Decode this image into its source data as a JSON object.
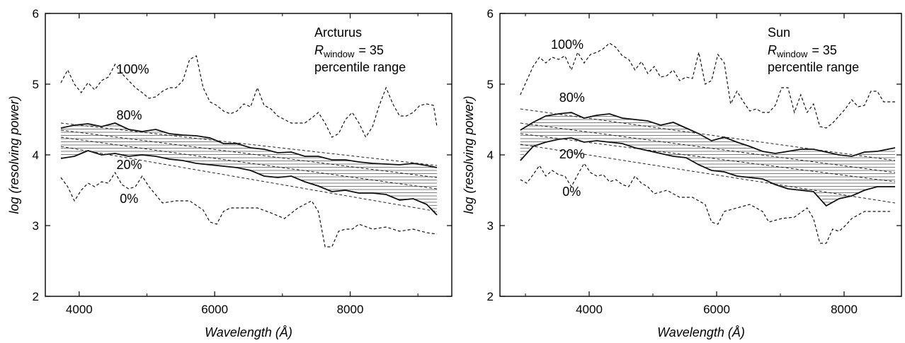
{
  "chart_data": [
    {
      "type": "line",
      "panel": "left",
      "star_name": "Arcturus",
      "annotation": {
        "r_symbol": "R",
        "r_subscript": "window",
        "r_value": "= 35",
        "line3": "percentile range"
      },
      "xlabel": "Wavelength (Å)",
      "ylabel": "log (resolving power)",
      "xlim": [
        3500,
        9500
      ],
      "ylim": [
        2,
        6
      ],
      "x_ticks": [
        4000,
        6000,
        8000
      ],
      "y_ticks": [
        2,
        3,
        4,
        5,
        6
      ],
      "grid": false,
      "series": [
        {
          "name": "100%",
          "style": "dashed",
          "x": [
            3730,
            3830,
            3930,
            4030,
            4130,
            4230,
            4330,
            4430,
            4530,
            4630,
            4730,
            4830,
            4930,
            5030,
            5130,
            5230,
            5330,
            5430,
            5530,
            5630,
            5730,
            5830,
            5930,
            6030,
            6130,
            6230,
            6330,
            6430,
            6530,
            6630,
            6730,
            6830,
            6930,
            7030,
            7130,
            7230,
            7330,
            7430,
            7530,
            7630,
            7730,
            7830,
            7930,
            8030,
            8130,
            8230,
            8330,
            8430,
            8530,
            8630,
            8730,
            8830,
            8930,
            9030,
            9130,
            9230,
            9280
          ],
          "y": [
            5.02,
            5.2,
            5.0,
            4.88,
            5.02,
            4.92,
            5.05,
            5.1,
            5.28,
            5.15,
            5.05,
            4.95,
            4.88,
            4.8,
            4.82,
            4.9,
            4.95,
            4.95,
            5.05,
            5.35,
            5.4,
            4.95,
            4.75,
            4.7,
            4.62,
            4.58,
            4.62,
            4.72,
            4.68,
            4.95,
            4.7,
            4.65,
            4.55,
            4.5,
            4.45,
            4.45,
            4.45,
            4.52,
            4.6,
            4.45,
            4.25,
            4.3,
            4.5,
            4.6,
            4.45,
            4.25,
            4.4,
            4.7,
            4.95,
            4.72,
            4.55,
            4.55,
            4.6,
            4.7,
            4.72,
            4.7,
            4.4
          ]
        },
        {
          "name": "80%",
          "style": "solid",
          "x": [
            3730,
            3930,
            4130,
            4330,
            4530,
            4730,
            4930,
            5130,
            5330,
            5530,
            5730,
            5930,
            6130,
            6330,
            6530,
            6730,
            6930,
            7130,
            7330,
            7530,
            7730,
            7930,
            8130,
            8330,
            8530,
            8730,
            8930,
            9130,
            9280
          ],
          "y": [
            4.38,
            4.42,
            4.44,
            4.4,
            4.45,
            4.36,
            4.33,
            4.36,
            4.3,
            4.28,
            4.27,
            4.24,
            4.16,
            4.16,
            4.1,
            4.08,
            4.03,
            4.04,
            3.98,
            3.98,
            3.93,
            3.93,
            3.9,
            3.88,
            3.87,
            3.86,
            3.88,
            3.85,
            3.82
          ]
        },
        {
          "name": "20%",
          "style": "solid",
          "x": [
            3730,
            3930,
            4130,
            4330,
            4530,
            4730,
            4930,
            5130,
            5330,
            5530,
            5730,
            5930,
            6130,
            6330,
            6530,
            6730,
            6930,
            7130,
            7330,
            7530,
            7730,
            7930,
            8130,
            8330,
            8530,
            8730,
            8930,
            9130,
            9280
          ],
          "y": [
            3.95,
            3.98,
            4.06,
            4.0,
            4.02,
            3.98,
            4.0,
            3.98,
            3.94,
            3.92,
            3.88,
            3.86,
            3.84,
            3.82,
            3.78,
            3.7,
            3.68,
            3.7,
            3.62,
            3.56,
            3.48,
            3.5,
            3.46,
            3.46,
            3.44,
            3.36,
            3.38,
            3.3,
            3.15
          ]
        },
        {
          "name": "0%",
          "style": "dashed",
          "x": [
            3730,
            3830,
            3930,
            4030,
            4130,
            4230,
            4330,
            4430,
            4530,
            4630,
            4730,
            4830,
            4930,
            5030,
            5230,
            5430,
            5630,
            5830,
            5930,
            6030,
            6130,
            6230,
            6430,
            6630,
            6830,
            7030,
            7230,
            7430,
            7530,
            7630,
            7730,
            7830,
            7930,
            8030,
            8130,
            8330,
            8530,
            8730,
            8930,
            9130,
            9280
          ],
          "y": [
            3.68,
            3.55,
            3.35,
            3.5,
            3.6,
            3.55,
            3.62,
            3.6,
            3.75,
            3.58,
            3.52,
            3.55,
            3.7,
            3.55,
            3.32,
            3.35,
            3.35,
            3.22,
            3.05,
            3.02,
            3.2,
            3.25,
            3.25,
            3.25,
            3.18,
            3.1,
            3.25,
            3.35,
            3.2,
            2.7,
            2.7,
            2.92,
            2.95,
            2.95,
            3.02,
            2.95,
            2.98,
            2.92,
            2.95,
            2.9,
            2.88
          ]
        },
        {
          "style": "dashed-fit",
          "x": [
            3730,
            9280
          ],
          "y": [
            4.45,
            3.85
          ]
        },
        {
          "style": "dashed-fit",
          "x": [
            3730,
            9280
          ],
          "y": [
            4.35,
            3.68
          ]
        },
        {
          "style": "dashed-fit",
          "x": [
            3730,
            9280
          ],
          "y": [
            4.25,
            3.52
          ]
        },
        {
          "style": "dashed-fit",
          "x": [
            3730,
            9280
          ],
          "y": [
            4.12,
            3.2
          ]
        }
      ],
      "labels": [
        {
          "text": "100%",
          "x": 4550,
          "y": 5.15
        },
        {
          "text": "80%",
          "x": 4550,
          "y": 4.5
        },
        {
          "text": "20%",
          "x": 4550,
          "y": 3.8
        },
        {
          "text": "0%",
          "x": 4600,
          "y": 3.32
        }
      ]
    },
    {
      "type": "line",
      "panel": "right",
      "star_name": "Sun",
      "annotation": {
        "r_symbol": "R",
        "r_subscript": "window",
        "r_value": "= 35",
        "line3": "percentile range"
      },
      "xlabel": "Wavelength (Å)",
      "ylabel": "log (resolving power)",
      "xlim": [
        2600,
        8900
      ],
      "ylim": [
        2,
        6
      ],
      "x_ticks": [
        4000,
        6000,
        8000
      ],
      "y_ticks": [
        2,
        3,
        4,
        5,
        6
      ],
      "grid": false,
      "series": [
        {
          "name": "100%",
          "style": "dashed",
          "x": [
            2920,
            3020,
            3120,
            3220,
            3320,
            3420,
            3520,
            3620,
            3720,
            3820,
            3920,
            4020,
            4120,
            4220,
            4320,
            4420,
            4520,
            4620,
            4720,
            4820,
            4920,
            5020,
            5120,
            5220,
            5320,
            5420,
            5520,
            5620,
            5720,
            5820,
            5920,
            6020,
            6120,
            6220,
            6320,
            6420,
            6520,
            6620,
            6720,
            6820,
            6920,
            7020,
            7120,
            7220,
            7320,
            7420,
            7520,
            7620,
            7720,
            7820,
            7920,
            8020,
            8120,
            8220,
            8320,
            8420,
            8520,
            8620,
            8720,
            8800
          ],
          "y": [
            4.85,
            5.05,
            5.25,
            5.38,
            5.3,
            5.38,
            5.35,
            5.4,
            5.2,
            5.45,
            5.3,
            5.42,
            5.45,
            5.5,
            5.58,
            5.52,
            5.4,
            5.35,
            5.2,
            5.32,
            5.15,
            5.25,
            5.1,
            5.12,
            5.2,
            5.05,
            5.1,
            5.08,
            5.45,
            5.0,
            5.05,
            5.42,
            5.3,
            4.72,
            4.9,
            4.75,
            4.62,
            4.65,
            4.6,
            4.6,
            4.7,
            4.95,
            4.95,
            4.6,
            4.85,
            4.6,
            4.72,
            4.4,
            4.38,
            4.45,
            4.55,
            4.65,
            4.78,
            4.68,
            4.7,
            4.9,
            4.9,
            4.75,
            4.75,
            4.75
          ]
        },
        {
          "name": "80%",
          "style": "solid",
          "x": [
            2920,
            3120,
            3320,
            3520,
            3720,
            3920,
            4120,
            4320,
            4520,
            4720,
            4920,
            5120,
            5320,
            5520,
            5720,
            5920,
            6120,
            6320,
            6520,
            6720,
            6920,
            7120,
            7320,
            7520,
            7720,
            7920,
            8120,
            8320,
            8520,
            8800
          ],
          "y": [
            4.35,
            4.46,
            4.55,
            4.58,
            4.6,
            4.52,
            4.56,
            4.58,
            4.52,
            4.5,
            4.48,
            4.42,
            4.46,
            4.38,
            4.3,
            4.2,
            4.25,
            4.18,
            4.12,
            4.05,
            4.02,
            4.05,
            4.08,
            4.08,
            4.04,
            4.0,
            3.98,
            4.04,
            4.05,
            4.1
          ]
        },
        {
          "name": "20%",
          "style": "solid",
          "x": [
            2920,
            3120,
            3320,
            3520,
            3720,
            3920,
            4120,
            4320,
            4520,
            4720,
            4920,
            5120,
            5320,
            5520,
            5720,
            5920,
            6120,
            6320,
            6520,
            6720,
            6920,
            7120,
            7320,
            7520,
            7720,
            7920,
            8120,
            8320,
            8520,
            8800
          ],
          "y": [
            3.92,
            4.12,
            4.18,
            4.22,
            4.24,
            4.18,
            4.2,
            4.18,
            4.16,
            4.1,
            4.06,
            4.02,
            3.98,
            3.96,
            3.86,
            3.78,
            3.76,
            3.7,
            3.68,
            3.66,
            3.58,
            3.52,
            3.5,
            3.48,
            3.28,
            3.38,
            3.42,
            3.5,
            3.55,
            3.55
          ]
        },
        {
          "name": "0%",
          "style": "dashed",
          "x": [
            2920,
            3020,
            3120,
            3220,
            3320,
            3420,
            3520,
            3620,
            3720,
            3820,
            3920,
            4020,
            4120,
            4220,
            4320,
            4420,
            4520,
            4620,
            4720,
            4820,
            4920,
            5020,
            5220,
            5420,
            5620,
            5820,
            5920,
            6020,
            6120,
            6320,
            6520,
            6720,
            6820,
            7020,
            7220,
            7420,
            7520,
            7620,
            7720,
            7820,
            7920,
            8020,
            8120,
            8320,
            8520,
            8720
          ],
          "y": [
            3.65,
            3.6,
            3.72,
            3.85,
            3.7,
            3.78,
            3.72,
            3.7,
            3.55,
            3.72,
            3.88,
            3.75,
            3.7,
            3.72,
            3.62,
            3.65,
            3.58,
            3.55,
            3.7,
            3.6,
            3.55,
            3.45,
            3.5,
            3.4,
            3.4,
            3.3,
            3.05,
            3.02,
            3.2,
            3.25,
            3.3,
            3.2,
            3.05,
            3.1,
            3.12,
            3.25,
            3.1,
            2.75,
            2.75,
            2.95,
            2.92,
            3.0,
            3.1,
            3.2,
            3.2,
            3.2
          ]
        },
        {
          "style": "dashed-fit",
          "x": [
            2920,
            8800
          ],
          "y": [
            4.65,
            3.92
          ]
        },
        {
          "style": "dashed-fit",
          "x": [
            2920,
            8800
          ],
          "y": [
            4.45,
            3.75
          ]
        },
        {
          "style": "dashed-fit",
          "x": [
            2920,
            8800
          ],
          "y": [
            4.3,
            3.62
          ]
        },
        {
          "style": "dashed-fit",
          "x": [
            2920,
            8800
          ],
          "y": [
            4.15,
            3.32
          ]
        }
      ],
      "labels": [
        {
          "text": "100%",
          "x": 3400,
          "y": 5.5
        },
        {
          "text": "80%",
          "x": 3530,
          "y": 4.75
        },
        {
          "text": "20%",
          "x": 3530,
          "y": 3.95
        },
        {
          "text": "0%",
          "x": 3580,
          "y": 3.42
        }
      ]
    }
  ]
}
